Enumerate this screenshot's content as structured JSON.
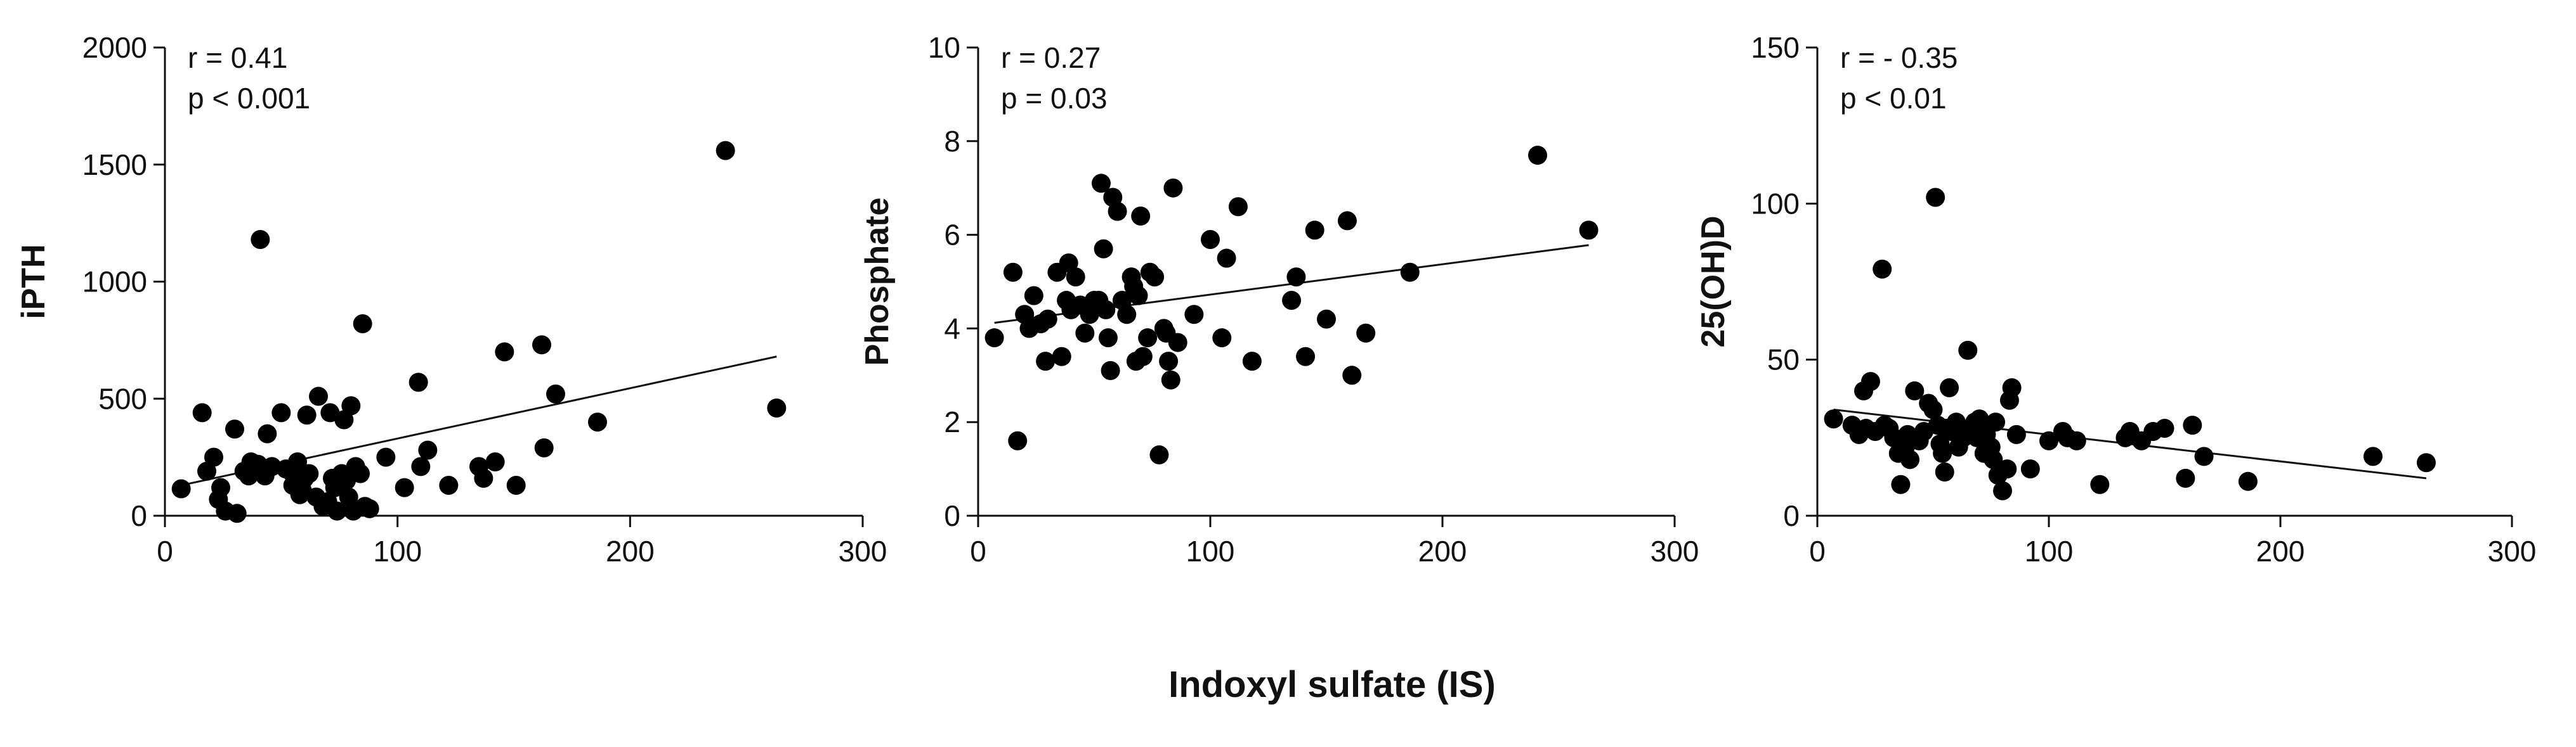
{
  "xlabel": "Indoxyl sulfate (IS)",
  "colors": {
    "points": "#000000",
    "axes": "#111111",
    "background": "#ffffff"
  },
  "chart_data": [
    {
      "type": "scatter",
      "ylabel": "iPTH",
      "xlim": [
        0,
        300
      ],
      "ylim": [
        0,
        2000
      ],
      "xticks": [
        0,
        100,
        200,
        300
      ],
      "yticks": [
        0,
        500,
        1000,
        1500,
        2000
      ],
      "annotation": [
        "r = 0.41",
        "p < 0.001"
      ],
      "fit_line": {
        "x": [
          7,
          263
        ],
        "y": [
          130,
          680
        ]
      },
      "points": [
        [
          7,
          115
        ],
        [
          16,
          440
        ],
        [
          18,
          190
        ],
        [
          21,
          250
        ],
        [
          24,
          120
        ],
        [
          23,
          70
        ],
        [
          26,
          20
        ],
        [
          31,
          10
        ],
        [
          30,
          370
        ],
        [
          34,
          190
        ],
        [
          36,
          170
        ],
        [
          37,
          230
        ],
        [
          40,
          220
        ],
        [
          41,
          1180
        ],
        [
          43,
          170
        ],
        [
          44,
          350
        ],
        [
          46,
          210
        ],
        [
          50,
          440
        ],
        [
          52,
          200
        ],
        [
          54,
          190
        ],
        [
          55,
          130
        ],
        [
          57,
          230
        ],
        [
          58,
          90
        ],
        [
          59,
          110
        ],
        [
          60,
          160
        ],
        [
          61,
          430
        ],
        [
          62,
          180
        ],
        [
          65,
          80
        ],
        [
          66,
          510
        ],
        [
          68,
          40
        ],
        [
          70,
          60
        ],
        [
          71,
          440
        ],
        [
          72,
          160
        ],
        [
          73,
          120
        ],
        [
          74,
          20
        ],
        [
          76,
          180
        ],
        [
          77,
          410
        ],
        [
          78,
          150
        ],
        [
          79,
          80
        ],
        [
          80,
          470
        ],
        [
          81,
          20
        ],
        [
          82,
          210
        ],
        [
          84,
          180
        ],
        [
          85,
          820
        ],
        [
          86,
          40
        ],
        [
          88,
          30
        ],
        [
          95,
          250
        ],
        [
          103,
          120
        ],
        [
          109,
          570
        ],
        [
          110,
          210
        ],
        [
          113,
          280
        ],
        [
          122,
          130
        ],
        [
          135,
          210
        ],
        [
          137,
          160
        ],
        [
          142,
          230
        ],
        [
          146,
          700
        ],
        [
          151,
          130
        ],
        [
          162,
          730
        ],
        [
          163,
          290
        ],
        [
          168,
          520
        ],
        [
          186,
          400
        ],
        [
          241,
          1560
        ],
        [
          263,
          460
        ]
      ]
    },
    {
      "type": "scatter",
      "ylabel": "Phosphate",
      "xlim": [
        0,
        300
      ],
      "ylim": [
        0,
        10
      ],
      "xticks": [
        0,
        100,
        200,
        300
      ],
      "yticks": [
        0,
        2,
        4,
        6,
        8,
        10
      ],
      "annotation": [
        "r =  0.27",
        "p = 0.03"
      ],
      "fit_line": {
        "x": [
          7,
          263
        ],
        "y": [
          4.12,
          5.78
        ]
      },
      "points": [
        [
          7,
          3.8
        ],
        [
          15,
          5.2
        ],
        [
          17,
          1.6
        ],
        [
          20,
          4.3
        ],
        [
          22,
          4.0
        ],
        [
          24,
          4.7
        ],
        [
          27,
          4.1
        ],
        [
          29,
          3.3
        ],
        [
          30,
          4.2
        ],
        [
          34,
          5.2
        ],
        [
          36,
          3.4
        ],
        [
          38,
          4.6
        ],
        [
          39,
          5.4
        ],
        [
          40,
          4.4
        ],
        [
          42,
          5.1
        ],
        [
          44,
          4.5
        ],
        [
          46,
          3.9
        ],
        [
          48,
          4.3
        ],
        [
          50,
          4.6
        ],
        [
          52,
          4.6
        ],
        [
          53,
          7.1
        ],
        [
          54,
          5.7
        ],
        [
          55,
          4.4
        ],
        [
          56,
          3.8
        ],
        [
          57,
          3.1
        ],
        [
          58,
          6.8
        ],
        [
          60,
          6.5
        ],
        [
          62,
          4.6
        ],
        [
          64,
          4.3
        ],
        [
          66,
          5.1
        ],
        [
          67,
          4.9
        ],
        [
          68,
          3.3
        ],
        [
          69,
          4.7
        ],
        [
          70,
          6.4
        ],
        [
          71,
          3.4
        ],
        [
          73,
          3.8
        ],
        [
          74,
          5.2
        ],
        [
          76,
          5.1
        ],
        [
          78,
          1.3
        ],
        [
          80,
          4.0
        ],
        [
          81,
          3.9
        ],
        [
          82,
          3.3
        ],
        [
          83,
          2.9
        ],
        [
          84,
          7.0
        ],
        [
          86,
          3.7
        ],
        [
          93,
          4.3
        ],
        [
          100,
          5.9
        ],
        [
          105,
          3.8
        ],
        [
          107,
          5.5
        ],
        [
          112,
          6.6
        ],
        [
          118,
          3.3
        ],
        [
          135,
          4.6
        ],
        [
          137,
          5.1
        ],
        [
          141,
          3.4
        ],
        [
          145,
          6.1
        ],
        [
          150,
          4.2
        ],
        [
          159,
          6.3
        ],
        [
          161,
          3.0
        ],
        [
          167,
          3.9
        ],
        [
          186,
          5.2
        ],
        [
          241,
          7.7
        ],
        [
          263,
          6.1
        ]
      ]
    },
    {
      "type": "scatter",
      "ylabel": "25(OH)D",
      "xlim": [
        0,
        300
      ],
      "ylim": [
        0,
        150
      ],
      "xticks": [
        0,
        100,
        200,
        300
      ],
      "yticks": [
        0,
        50,
        100,
        150
      ],
      "annotation": [
        "r = - 0.35",
        "p < 0.01"
      ],
      "fit_line": {
        "x": [
          7,
          263
        ],
        "y": [
          34,
          12
        ]
      },
      "points": [
        [
          7,
          31
        ],
        [
          15,
          29
        ],
        [
          18,
          26
        ],
        [
          20,
          40
        ],
        [
          21,
          28
        ],
        [
          23,
          43
        ],
        [
          25,
          27
        ],
        [
          28,
          79
        ],
        [
          29,
          29
        ],
        [
          31,
          28
        ],
        [
          33,
          25
        ],
        [
          35,
          20
        ],
        [
          36,
          10
        ],
        [
          38,
          22
        ],
        [
          39,
          26
        ],
        [
          40,
          18
        ],
        [
          42,
          40
        ],
        [
          44,
          24
        ],
        [
          46,
          27
        ],
        [
          48,
          36
        ],
        [
          50,
          34
        ],
        [
          51,
          102
        ],
        [
          52,
          29
        ],
        [
          53,
          23
        ],
        [
          54,
          20
        ],
        [
          55,
          14
        ],
        [
          56,
          28
        ],
        [
          57,
          41
        ],
        [
          58,
          27
        ],
        [
          60,
          30
        ],
        [
          61,
          22
        ],
        [
          63,
          25
        ],
        [
          65,
          53
        ],
        [
          66,
          27
        ],
        [
          68,
          30
        ],
        [
          69,
          25
        ],
        [
          70,
          31
        ],
        [
          72,
          20
        ],
        [
          73,
          26
        ],
        [
          75,
          22
        ],
        [
          76,
          18
        ],
        [
          77,
          30
        ],
        [
          78,
          13
        ],
        [
          80,
          8
        ],
        [
          82,
          15
        ],
        [
          83,
          37
        ],
        [
          84,
          41
        ],
        [
          86,
          26
        ],
        [
          92,
          15
        ],
        [
          100,
          24
        ],
        [
          106,
          27
        ],
        [
          108,
          25
        ],
        [
          112,
          24
        ],
        [
          122,
          10
        ],
        [
          133,
          25
        ],
        [
          135,
          27
        ],
        [
          140,
          24
        ],
        [
          145,
          27
        ],
        [
          150,
          28
        ],
        [
          159,
          12
        ],
        [
          162,
          29
        ],
        [
          167,
          19
        ],
        [
          186,
          11
        ],
        [
          240,
          19
        ],
        [
          263,
          17
        ]
      ]
    }
  ]
}
